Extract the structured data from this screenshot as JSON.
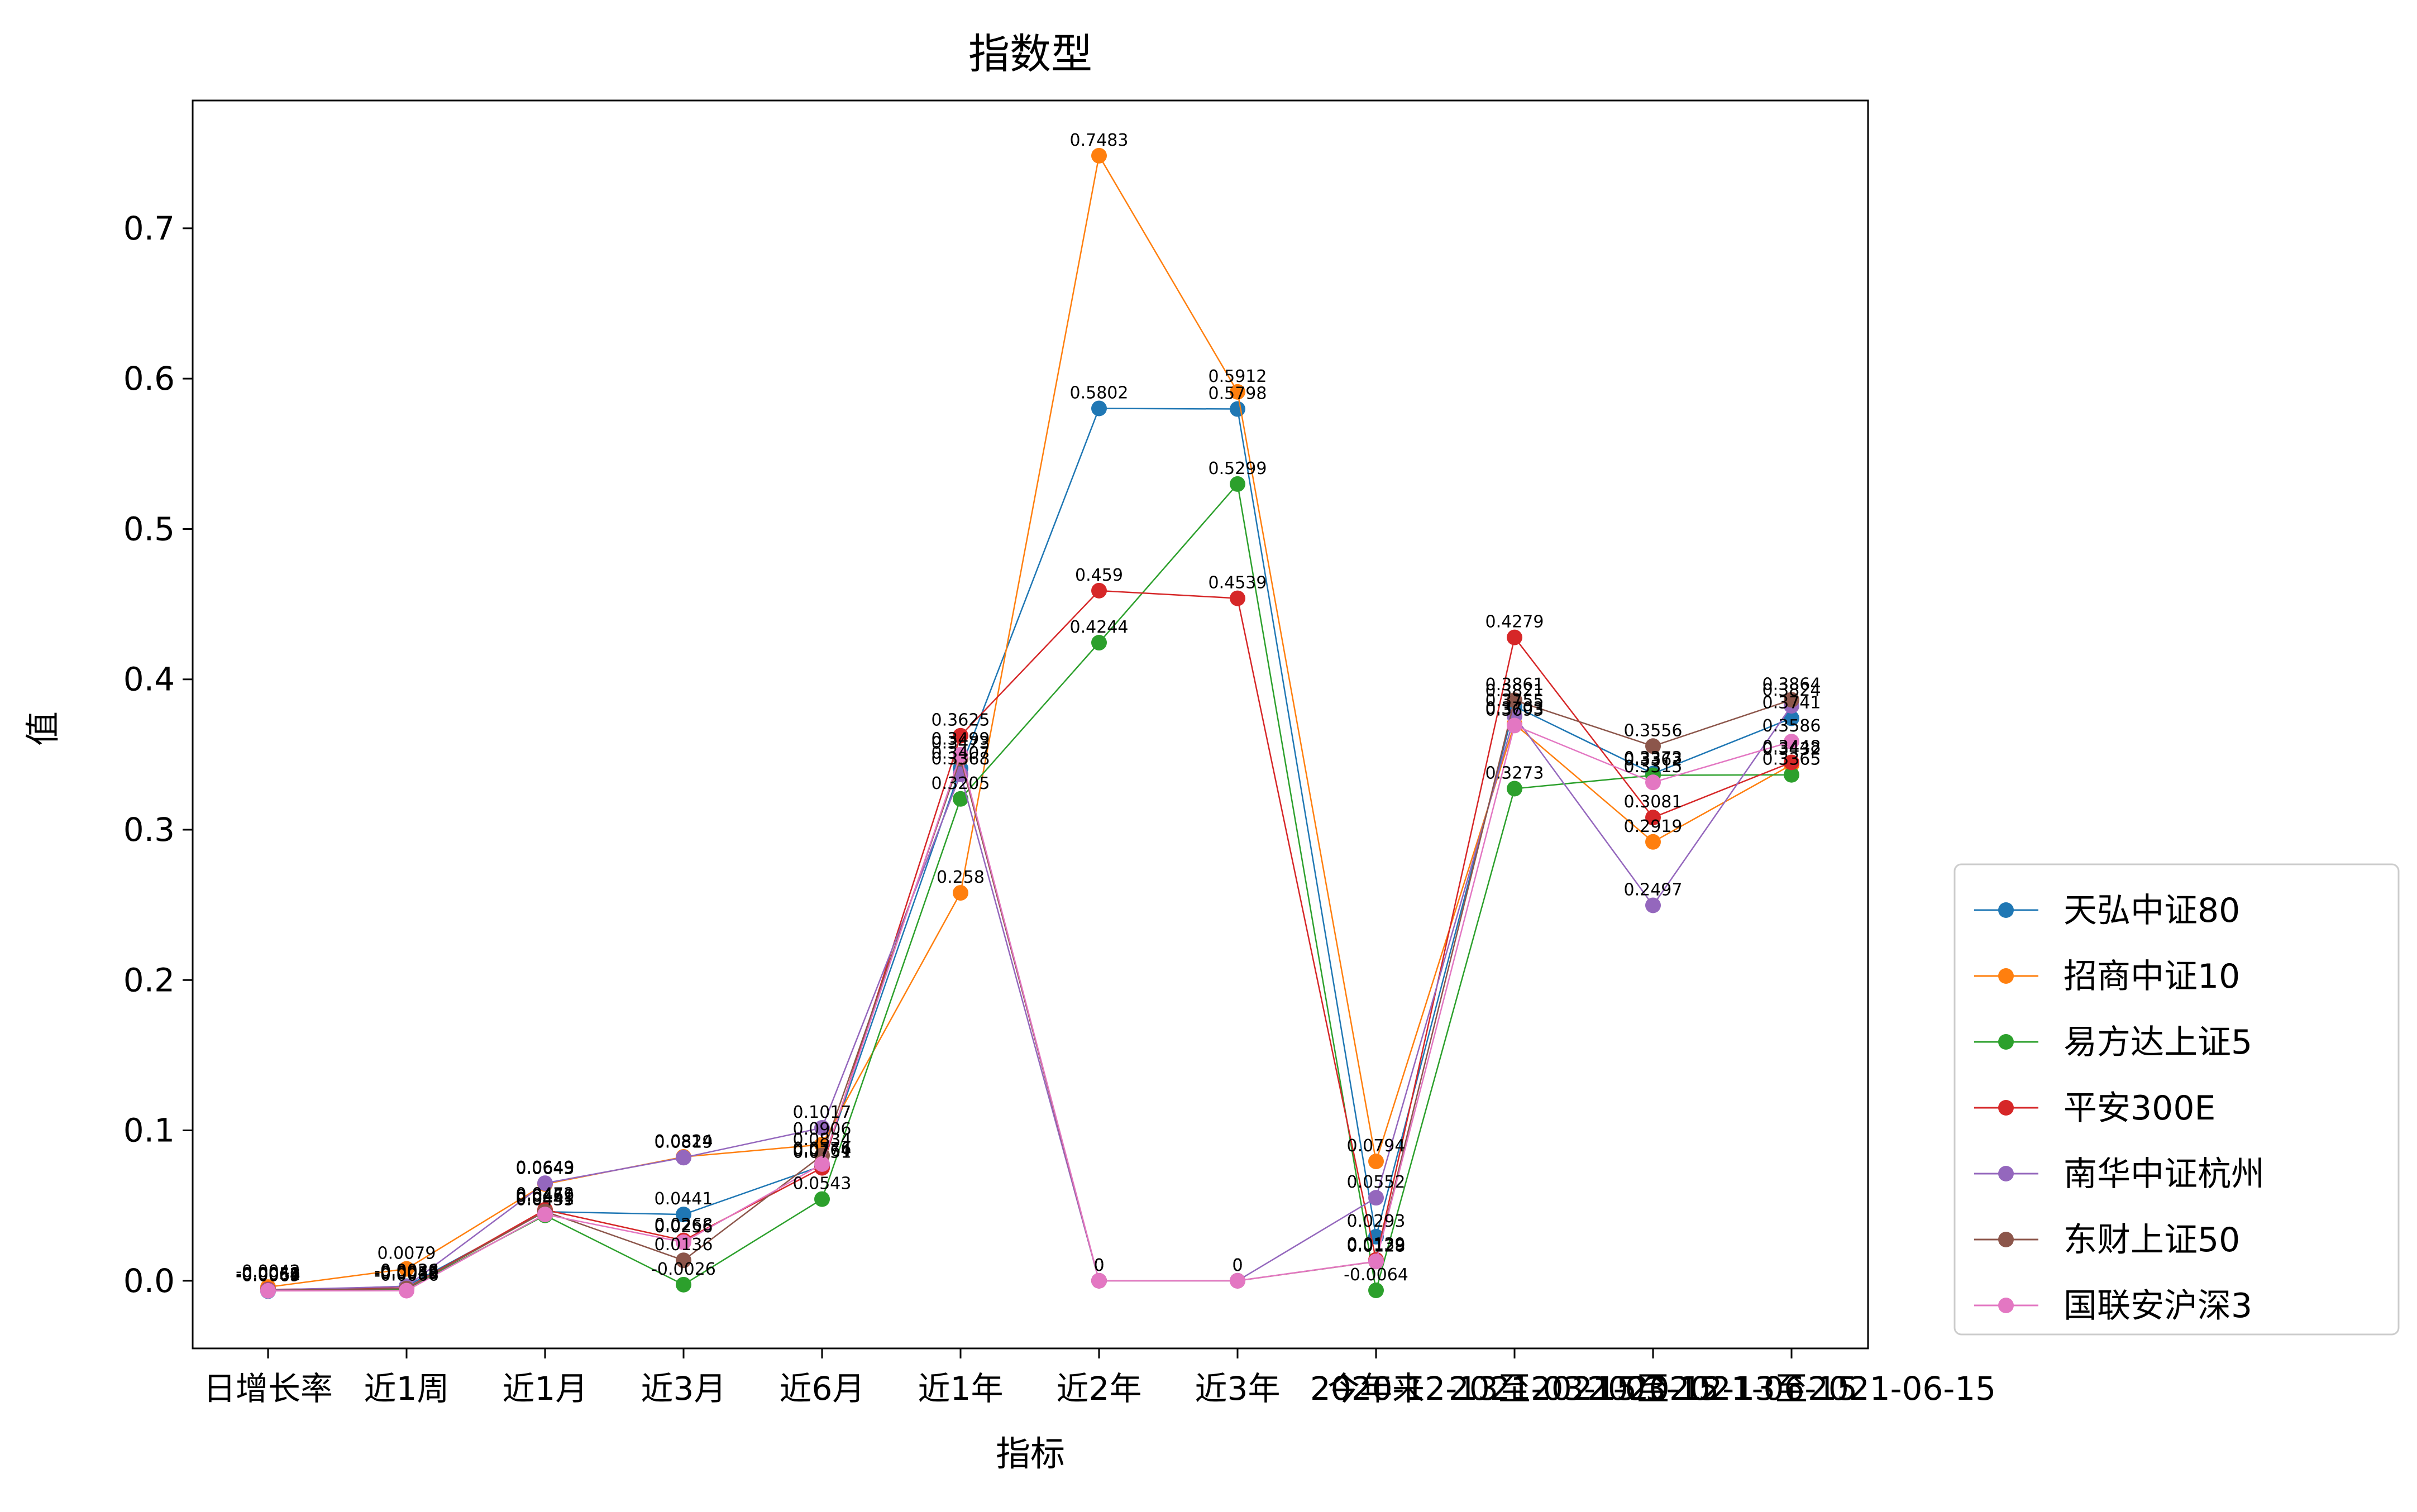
{
  "chart_data": {
    "type": "line",
    "title": "指数型",
    "xlabel": "指标",
    "ylabel": "值",
    "categories": [
      "日增长率",
      "近1周",
      "近1月",
      "近3月",
      "近6月",
      "近1年",
      "近2年",
      "近3年",
      "今年来",
      "2020-12-13",
      "2021-03-15",
      "2021-06-15"
    ],
    "category_ticks": [
      "日增长率",
      "近1周",
      "近1月",
      "近3月",
      "近6月",
      "近1年",
      "近2年",
      "近3年",
      "今年来",
      "2020-12-13至2021-03-15",
      "2021-03-15至2021-06-15",
      "2020-12-13至2021-06-15"
    ],
    "ylim": [
      -0.045,
      0.785
    ],
    "yticks": [
      0.0,
      0.1,
      0.2,
      0.3,
      0.4,
      0.5,
      0.6,
      0.7
    ],
    "ytick_labels": [
      "0.0",
      "0.1",
      "0.2",
      "0.3",
      "0.4",
      "0.5",
      "0.6",
      "0.7"
    ],
    "grid": false,
    "legend_position": "outside-right-bottom",
    "series": [
      {
        "name": "天弘中证80",
        "color": "#1f77b4",
        "values": [
          -0.0069,
          -0.0036,
          0.0459,
          0.0441,
          0.0764,
          0.3407,
          0.5802,
          0.5798,
          0.0293,
          0.3821,
          0.3373,
          0.3741
        ]
      },
      {
        "name": "招商中证10",
        "color": "#ff7f0e",
        "values": [
          -0.0042,
          0.0079,
          0.0643,
          0.0824,
          0.0906,
          0.258,
          0.7483,
          0.5912,
          0.0794,
          0.3703,
          0.2919,
          0.3432
        ]
      },
      {
        "name": "易方达上证5",
        "color": "#2ca02c",
        "values": [
          -0.0062,
          -0.0055,
          0.0435,
          -0.0026,
          0.0543,
          0.3205,
          0.4244,
          0.5299,
          -0.0064,
          0.3273,
          0.3362,
          0.3365
        ]
      },
      {
        "name": "平安300E",
        "color": "#d62728",
        "values": [
          -0.0058,
          -0.0049,
          0.0472,
          0.0268,
          0.0751,
          0.3625,
          0.459,
          0.4539,
          0.0139,
          0.4279,
          0.3081,
          0.3448
        ]
      },
      {
        "name": "南华中证杭州",
        "color": "#9467bd",
        "values": [
          -0.0061,
          -0.0038,
          0.0649,
          0.0819,
          0.1017,
          0.3368,
          0.0,
          0.0,
          0.0552,
          0.3755,
          0.2497,
          0.3824
        ]
      },
      {
        "name": "东财上证50",
        "color": "#8c564b",
        "values": [
          -0.0064,
          -0.0052,
          0.0461,
          0.0136,
          0.0834,
          0.3473,
          0.0,
          0.0,
          0.0128,
          0.3861,
          0.3556,
          0.3864
        ]
      },
      {
        "name": "国联安沪深3",
        "color": "#e377c2",
        "values": [
          -0.0067,
          -0.0066,
          0.0441,
          0.0256,
          0.0776,
          0.3499,
          0.0,
          0.0,
          0.0129,
          0.3693,
          0.3315,
          0.3586
        ]
      }
    ],
    "value_labels": [
      [
        "-0.0069",
        "-0.0036",
        "0.0459",
        "0.0441",
        "0.0764",
        "0.3407",
        "0.5802",
        "0.5798",
        "0.0293",
        "0.3821",
        "0.3373",
        "0.3741"
      ],
      [
        "-0.0042",
        "0.0079",
        "0.0643",
        "0.0824",
        "0.0906",
        "0.258",
        "0.7483",
        "0.5912",
        "0.0794",
        "0.3703",
        "0.2919",
        "0.3432"
      ],
      [
        "-0.0062",
        "-0.0055",
        "0.0435",
        "-0.0026",
        "0.0543",
        "0.3205",
        "0.4244",
        "0.5299",
        "-0.0064",
        "0.3273",
        "0.3362",
        "0.3365"
      ],
      [
        "-0.0058",
        "-0.0049",
        "0.0472",
        "0.0268",
        "0.0751",
        "0.3625",
        "0.459",
        "0.4539",
        "0.0139",
        "0.4279",
        "0.3081",
        "0.3448"
      ],
      [
        "-0.0061",
        "-0.0038",
        "0.0649",
        "0.0819",
        "0.1017",
        "0.3368",
        "0",
        "0",
        "0.0552",
        "0.3755",
        "0.2497",
        "0.3824"
      ],
      [
        "-0.0064",
        "-0.0052",
        "0.0461",
        "0.0136",
        "0.0834",
        "0.3473",
        "0",
        "0",
        "0.0128",
        "0.3861",
        "0.3556",
        "0.3864"
      ],
      [
        "-0.0067",
        "-0.0066",
        "0.0441",
        "0.0256",
        "0.0776",
        "0.3499",
        "0",
        "0",
        "0.0129",
        "0.3693",
        "0.3315",
        "0.3586"
      ]
    ]
  }
}
